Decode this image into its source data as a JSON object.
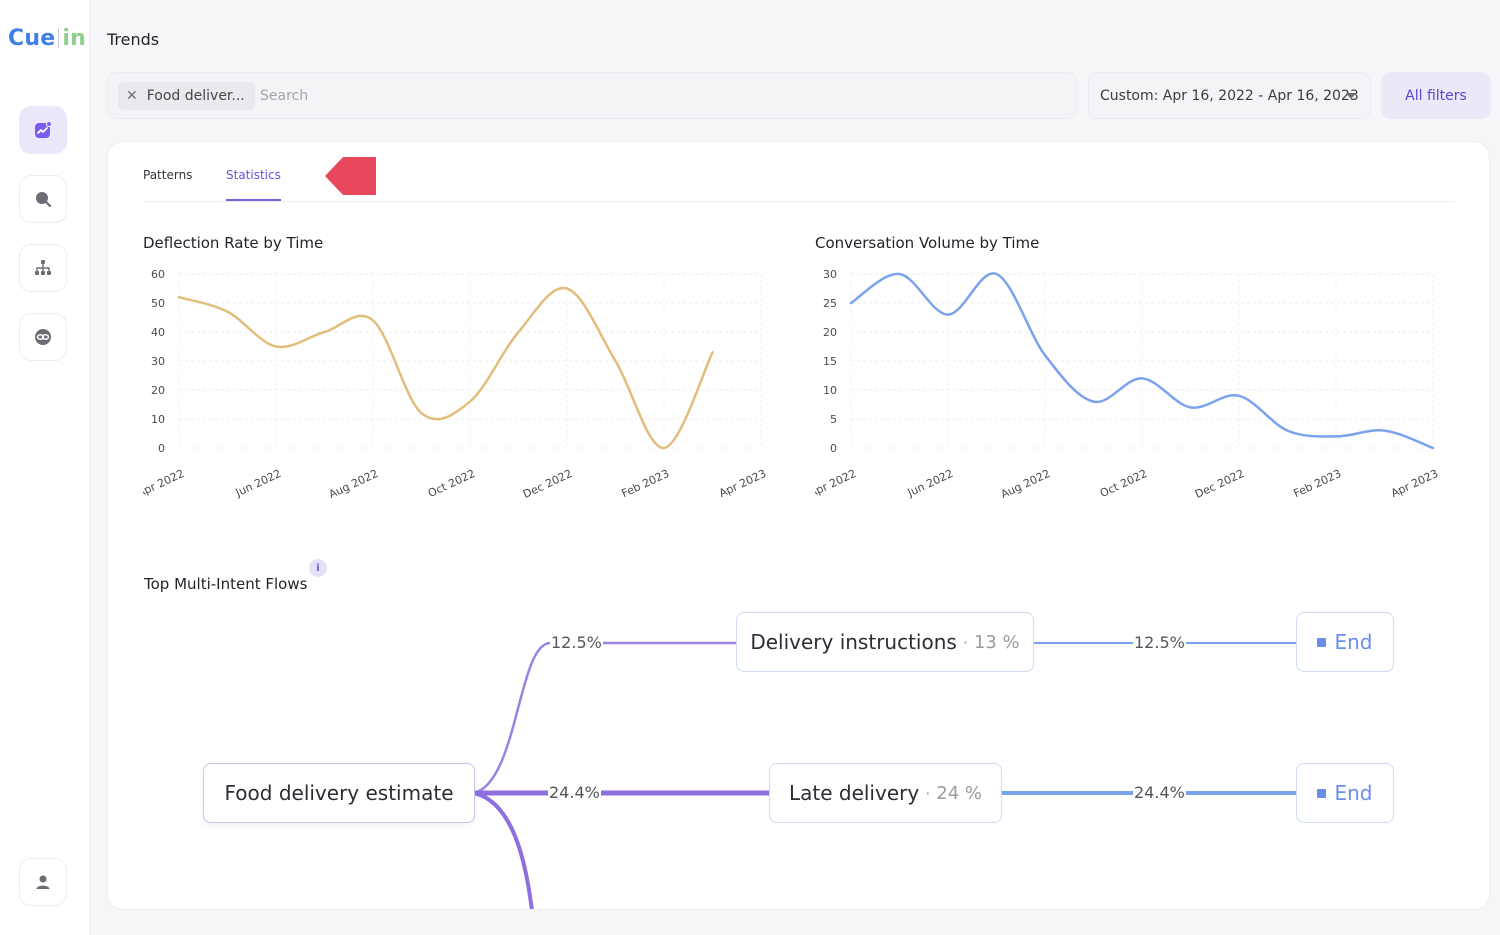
{
  "app": {
    "logo_left": "Cue",
    "logo_right": "in",
    "page_title": "Trends"
  },
  "sidebar": {
    "items": [
      {
        "name": "trends",
        "icon": "trend-chart-icon",
        "active": true
      },
      {
        "name": "search",
        "icon": "search-icon",
        "active": false
      },
      {
        "name": "hierarchy",
        "icon": "hierarchy-icon",
        "active": false
      },
      {
        "name": "links",
        "icon": "link-icon",
        "active": false
      }
    ],
    "user_icon": "user-icon"
  },
  "search": {
    "chip_label": "Food deliver...",
    "placeholder": "Search",
    "value": ""
  },
  "date_range": {
    "label": "Custom: Apr 16, 2022 - Apr 16, 2023"
  },
  "filters_button": "All filters",
  "tabs": [
    {
      "label": "Patterns",
      "active": false
    },
    {
      "label": "Statistics",
      "active": true
    }
  ],
  "colors": {
    "accent": "#6a52d9",
    "deflection_line": "#e2bd7c",
    "volume_line": "#7aa3ec",
    "arrow_marker": "#e8485e"
  },
  "chart_data": [
    {
      "type": "line",
      "title": "Deflection Rate by Time",
      "x": [
        "2022-04",
        "2022-05",
        "2022-06",
        "2022-07",
        "2022-08",
        "2022-09",
        "2022-10",
        "2022-11",
        "2022-12",
        "2023-01",
        "2023-02",
        "2023-03"
      ],
      "x_tick_labels": [
        "Apr 2022",
        "Jun 2022",
        "Aug 2022",
        "Oct 2022",
        "Dec 2022",
        "Feb 2023",
        "Apr 2023"
      ],
      "series": [
        {
          "values": [
            52,
            47,
            35,
            40,
            44,
            12,
            16,
            40,
            55,
            30,
            0,
            33
          ]
        }
      ],
      "ylim": [
        0,
        60
      ],
      "y_ticks": [
        0,
        10,
        20,
        30,
        40,
        50,
        60
      ],
      "grid": true
    },
    {
      "type": "line",
      "title": "Conversation Volume by Time",
      "x": [
        "2022-04",
        "2022-05",
        "2022-06",
        "2022-07",
        "2022-08",
        "2022-09",
        "2022-10",
        "2022-11",
        "2022-12",
        "2023-01",
        "2023-02",
        "2023-03",
        "2023-04"
      ],
      "x_tick_labels": [
        "Apr 2022",
        "Jun 2022",
        "Aug 2022",
        "Oct 2022",
        "Dec 2022",
        "Feb 2023",
        "Apr 2023"
      ],
      "series": [
        {
          "values": [
            25,
            30,
            23,
            30,
            16,
            8,
            12,
            7,
            9,
            3,
            2,
            3,
            0
          ]
        }
      ],
      "ylim": [
        0,
        30
      ],
      "y_ticks": [
        0,
        5,
        10,
        15,
        20,
        25,
        30
      ],
      "grid": true
    }
  ],
  "flows": {
    "title": "Top Multi-Intent Flows",
    "info_icon": "info-icon",
    "source": "Food delivery estimate",
    "branches": [
      {
        "edge_pct": "12.5%",
        "label": "Delivery instructions",
        "share": "13 %",
        "end_pct": "12.5%",
        "end": "End"
      },
      {
        "edge_pct": "24.4%",
        "label": "Late delivery",
        "share": "24 %",
        "end_pct": "24.4%",
        "end": "End"
      }
    ]
  }
}
